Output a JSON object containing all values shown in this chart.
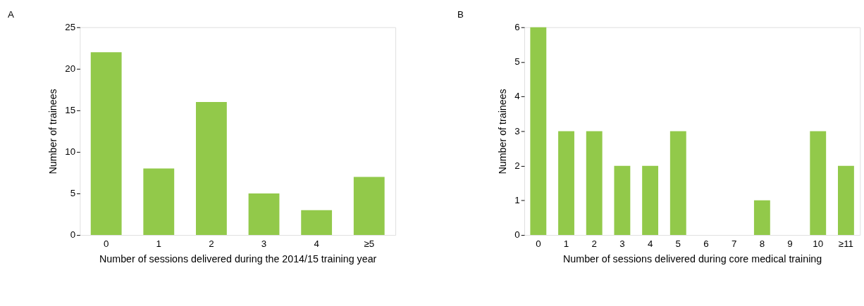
{
  "chart_data": [
    {
      "type": "bar",
      "title": "A",
      "xlabel": "Number of sessions delivered during the 2014/15 training year",
      "ylabel": "Number of trainees",
      "categories": [
        "0",
        "1",
        "2",
        "3",
        "4",
        "≥5"
      ],
      "values": [
        22,
        8,
        16,
        5,
        3,
        7
      ],
      "color": "#92c94a",
      "ylim": [
        0,
        25
      ],
      "yticks": [
        0,
        5,
        10,
        15,
        20,
        25
      ]
    },
    {
      "type": "bar",
      "title": "B",
      "xlabel": "Number of sessions delivered during core medical training",
      "ylabel": "Number of trainees",
      "categories": [
        "0",
        "1",
        "2",
        "3",
        "4",
        "5",
        "6",
        "7",
        "8",
        "9",
        "10",
        "≥11"
      ],
      "values": [
        6,
        3,
        3,
        2,
        2,
        3,
        0,
        0,
        1,
        0,
        3,
        2
      ],
      "color": "#92c94a",
      "ylim": [
        0,
        6
      ],
      "yticks": [
        0,
        1,
        2,
        3,
        4,
        5,
        6
      ]
    }
  ]
}
